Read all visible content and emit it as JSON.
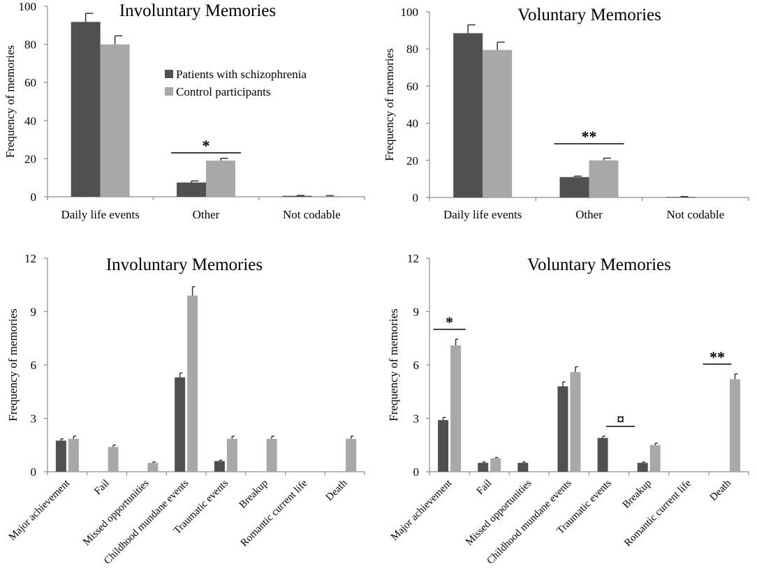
{
  "colors": {
    "schizophrenia": "#505050",
    "control": "#a8a8a8",
    "axis": "#8c8c8c",
    "error": "#333333"
  },
  "legend": {
    "items": [
      "Patients with schizophrenia",
      "Control participants"
    ],
    "position": "inside-top-center"
  },
  "chart_data": [
    {
      "type": "bar",
      "title": "Involuntary Memories",
      "ylabel": "Frequency of memories",
      "xlabel": "",
      "ylim": [
        0,
        100
      ],
      "yticks": [
        0,
        20,
        40,
        60,
        80,
        100
      ],
      "categories": [
        "Daily life events",
        "Other",
        "Not codable"
      ],
      "series": [
        {
          "name": "Patients with schizophrenia",
          "values": [
            91.8,
            7.5,
            0.5
          ],
          "errors": [
            4.5,
            0.8,
            0.2
          ]
        },
        {
          "name": "Control participants",
          "values": [
            80,
            19,
            0.4
          ],
          "errors": [
            4.5,
            1.2,
            0.2
          ]
        }
      ],
      "significance": [
        {
          "category": "Other",
          "label": "*",
          "span": "between"
        }
      ],
      "rotated_labels": false,
      "show_legend": true
    },
    {
      "type": "bar",
      "title": "Voluntary Memories",
      "ylabel": "Frequency of memories",
      "xlabel": "",
      "ylim": [
        0,
        100
      ],
      "yticks": [
        0,
        20,
        40,
        60,
        80,
        100
      ],
      "categories": [
        "Daily life events",
        "Other",
        "Not codable"
      ],
      "series": [
        {
          "name": "Patients with schizophrenia",
          "values": [
            88.5,
            11,
            0.3
          ],
          "errors": [
            4.5,
            0.5,
            0.2
          ]
        },
        {
          "name": "Control participants",
          "values": [
            79.5,
            20,
            0
          ],
          "errors": [
            4.2,
            1.2,
            0
          ]
        }
      ],
      "significance": [
        {
          "category": "Other",
          "label": "**",
          "span": "between"
        }
      ],
      "rotated_labels": false,
      "show_legend": false
    },
    {
      "type": "bar",
      "title": "Involuntary Memories",
      "ylabel": "Frequency of memories",
      "xlabel": "",
      "ylim": [
        0,
        12
      ],
      "yticks": [
        0,
        3,
        6,
        9,
        12
      ],
      "categories": [
        "Major achievement",
        "Fail",
        "Missed opportunities",
        "Childhood mundane events",
        "Traumatic events",
        "Breakup",
        "Romantic current life",
        "Death"
      ],
      "series": [
        {
          "name": "Patients with schizophrenia",
          "values": [
            1.75,
            0,
            0,
            5.3,
            0.6,
            0,
            0,
            0
          ],
          "errors": [
            0.1,
            0,
            0,
            0.25,
            0.05,
            0,
            0,
            0
          ]
        },
        {
          "name": "Control participants",
          "values": [
            1.85,
            1.4,
            0.5,
            9.9,
            1.85,
            1.85,
            0,
            1.85
          ],
          "errors": [
            0.15,
            0.1,
            0.05,
            0.5,
            0.15,
            0.15,
            0,
            0.15
          ]
        }
      ],
      "significance": [],
      "rotated_labels": true,
      "show_legend": false
    },
    {
      "type": "bar",
      "title": "Voluntary Memories",
      "ylabel": "Frequency of memories",
      "xlabel": "",
      "ylim": [
        0,
        12
      ],
      "yticks": [
        0,
        3,
        6,
        9,
        12
      ],
      "categories": [
        "Major achievement",
        "Fail",
        "Missed opportunities",
        "Childhood mundane events",
        "Traumatic events",
        "Breakup",
        "Romantic current life",
        "Death"
      ],
      "series": [
        {
          "name": "Patients with schizophrenia",
          "values": [
            2.9,
            0.5,
            0.5,
            4.8,
            1.9,
            0.5,
            0,
            0
          ],
          "errors": [
            0.15,
            0.05,
            0.05,
            0.25,
            0.1,
            0.05,
            0,
            0
          ]
        },
        {
          "name": "Control participants",
          "values": [
            7.1,
            0.75,
            0,
            5.6,
            0,
            1.5,
            0,
            5.2
          ],
          "errors": [
            0.35,
            0.05,
            0,
            0.3,
            0,
            0.1,
            0,
            0.3
          ]
        }
      ],
      "significance": [
        {
          "category": "Major achievement",
          "label": "*",
          "span": "between"
        },
        {
          "category": "Traumatic events",
          "label": "¤",
          "span": "right"
        },
        {
          "category": "Death",
          "label": "**",
          "span": "left"
        }
      ],
      "rotated_labels": true,
      "show_legend": false
    }
  ]
}
